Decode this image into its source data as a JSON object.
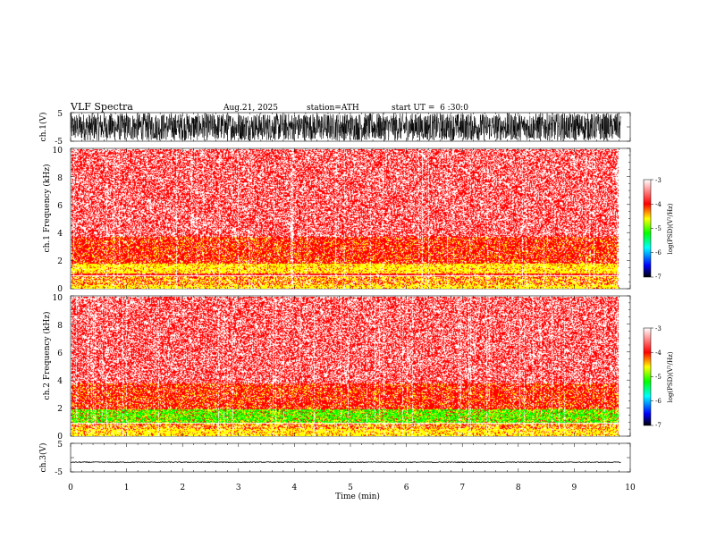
{
  "header": {
    "title": "VLF Spectra",
    "date": "Aug.21, 2025",
    "station": "station=ATH",
    "start": "start UT =  6 :30:0"
  },
  "colors": {
    "white": "#ffffff",
    "red": "#ff0000",
    "yellow": "#ffff00",
    "green": "#00ff00",
    "blue": "#0000ff",
    "black": "#000000"
  },
  "chart_data": [
    {
      "id": "ch1-waveform",
      "type": "line",
      "ylabel": "ch.1(V)",
      "ylim": [
        -5,
        5
      ],
      "yticks": [
        "5",
        "-5"
      ],
      "description_values": {
        "amplitude_V": 4.8,
        "duration_min": 9.83
      }
    },
    {
      "id": "ch1-spectrogram",
      "type": "heatmap",
      "ylabel": "ch.1 Frequency (kHz)",
      "ylim": [
        0,
        10
      ],
      "yticks": [
        "0",
        "2",
        "4",
        "6",
        "8",
        "10"
      ],
      "xlim": [
        0,
        10
      ],
      "data_end_min": 9.83,
      "bands": [
        {
          "f0": 0.0,
          "f1": 0.25,
          "level": "yellow"
        },
        {
          "f0": 0.25,
          "f1": 0.9,
          "level": "mixed-yellow-red"
        },
        {
          "f0": 0.9,
          "f1": 1.1,
          "level": "red"
        },
        {
          "f0": 1.1,
          "f1": 1.8,
          "level": "yellow"
        },
        {
          "f0": 1.8,
          "f1": 3.7,
          "level": "red-yellow"
        },
        {
          "f0": 3.7,
          "f1": 10.0,
          "level": "speckled-red"
        }
      ],
      "colorbar": {
        "label": "log(PSD)(V²/Hz)",
        "range": [
          -7,
          -3
        ],
        "ticks": [
          "-3",
          "-4",
          "-5",
          "-6",
          "-7"
        ]
      }
    },
    {
      "id": "ch2-spectrogram",
      "type": "heatmap",
      "ylabel": "ch.2 Frequency (kHz)",
      "ylim": [
        0,
        10
      ],
      "yticks": [
        "0",
        "2",
        "4",
        "6",
        "8",
        "10"
      ],
      "xlim": [
        0,
        10
      ],
      "data_end_min": 9.83,
      "bands": [
        {
          "f0": 0.0,
          "f1": 0.5,
          "level": "yellow"
        },
        {
          "f0": 0.5,
          "f1": 0.9,
          "level": "mixed-yellow-red"
        },
        {
          "f0": 0.9,
          "f1": 1.9,
          "level": "green-yellow"
        },
        {
          "f0": 1.9,
          "f1": 3.8,
          "level": "red-yellow"
        },
        {
          "f0": 3.8,
          "f1": 10.0,
          "level": "speckled-red"
        }
      ],
      "colorbar": {
        "label": "log(PSD)(V²/Hz)",
        "range": [
          -7,
          -3
        ],
        "ticks": [
          "-3",
          "-4",
          "-5",
          "-6",
          "-7"
        ]
      }
    },
    {
      "id": "ch3-waveform",
      "type": "line",
      "ylabel": "ch.3(V)",
      "ylim": [
        -5,
        5
      ],
      "yticks": [
        "5",
        "-5"
      ],
      "description_values": {
        "offset_V": -1.6,
        "amplitude_V": 0.15,
        "duration_min": 9.83
      },
      "xlabel": "Time (min)",
      "xticks": [
        "0",
        "1",
        "2",
        "3",
        "4",
        "5",
        "6",
        "7",
        "8",
        "9",
        "10"
      ]
    }
  ]
}
